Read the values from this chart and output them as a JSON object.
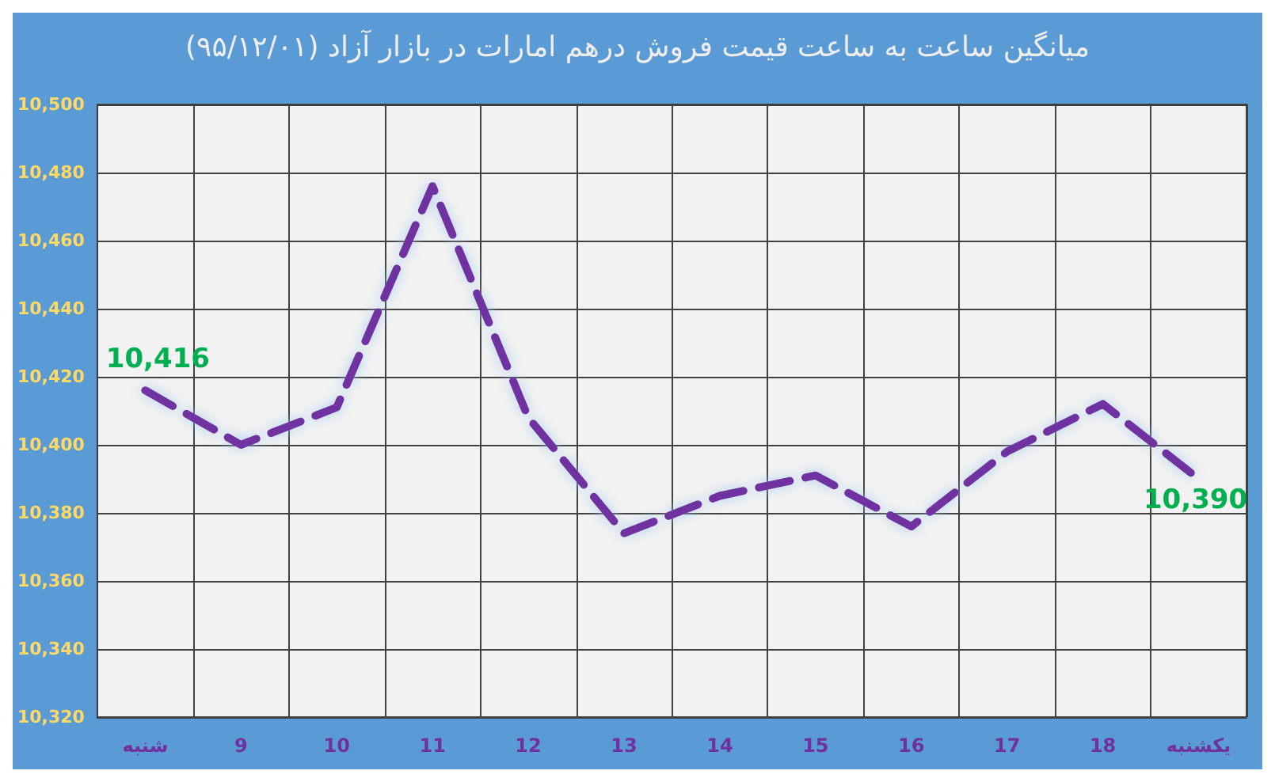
{
  "chart_data": {
    "type": "line",
    "title": "میانگین ساعت به ساعت قیمت فروش درهم امارات در بازار آزاد (۹۵/۱۲/۰۱)",
    "categories": [
      "شنبه",
      "9",
      "10",
      "11",
      "12",
      "13",
      "14",
      "15",
      "16",
      "17",
      "18",
      "یکشنبه"
    ],
    "series": [
      {
        "color": "#7030a0",
        "values": [
          10416,
          10400,
          10411,
          10476,
          10408,
          10374,
          10385,
          10391,
          10376,
          10398,
          10412,
          10390
        ],
        "value_labels": [
          "10,416",
          null,
          null,
          null,
          null,
          null,
          null,
          null,
          null,
          null,
          null,
          "10,390"
        ]
      }
    ],
    "ylim": [
      10320,
      10500
    ],
    "yticks": [
      {
        "value": 10320,
        "label": "10,320"
      },
      {
        "value": 10340,
        "label": "10,340"
      },
      {
        "value": 10360,
        "label": "10,360"
      },
      {
        "value": 10380,
        "label": "10,380"
      },
      {
        "value": 10400,
        "label": "10,400"
      },
      {
        "value": 10420,
        "label": "10,420"
      },
      {
        "value": 10440,
        "label": "10,440"
      },
      {
        "value": 10460,
        "label": "10,460"
      },
      {
        "value": 10480,
        "label": "10,480"
      },
      {
        "value": 10500,
        "label": "10,500"
      }
    ],
    "grid": true,
    "marker": "none",
    "line_style": "dashed"
  }
}
